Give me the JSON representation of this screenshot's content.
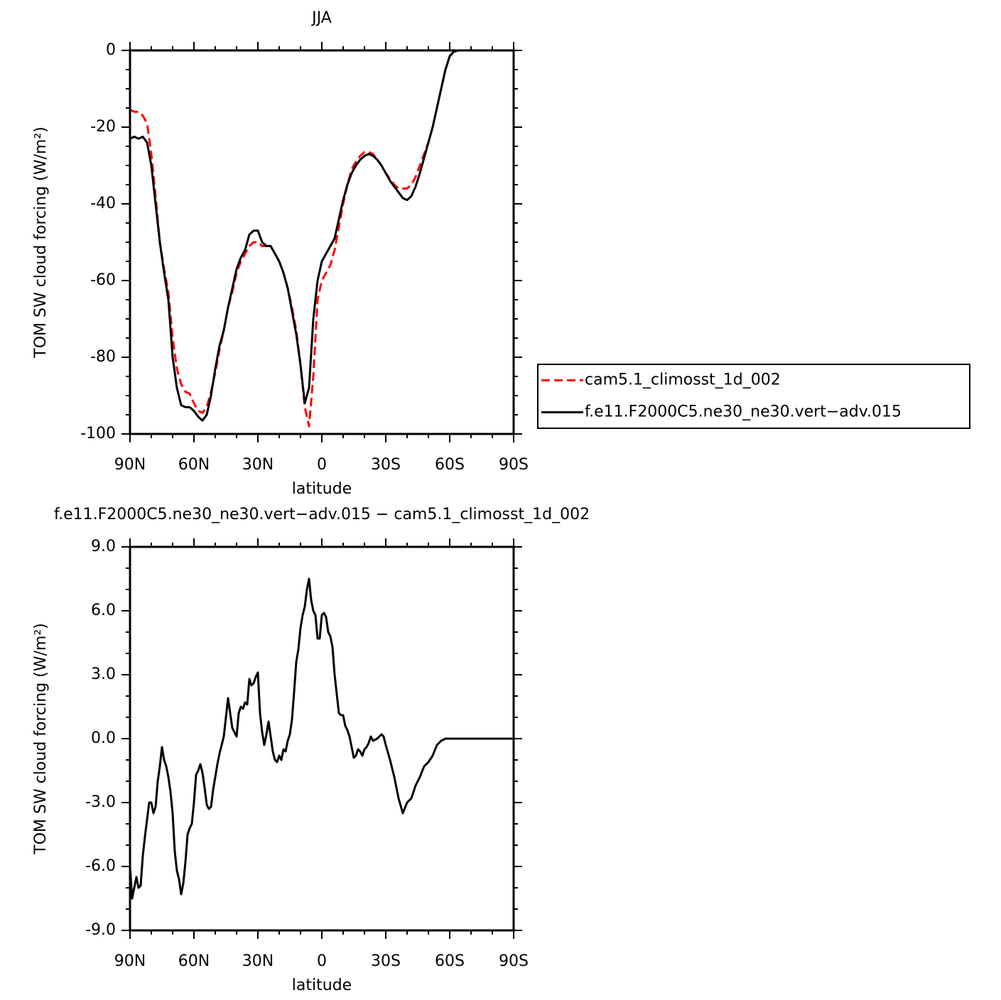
{
  "chart_data": [
    {
      "type": "line",
      "title": "JJA",
      "xlabel": "latitude",
      "ylabel": "TOM SW cloud forcing (W/m²)",
      "x": [
        90,
        88,
        86,
        84,
        82,
        80,
        78,
        76,
        74,
        72,
        70,
        68,
        66,
        64,
        62,
        60,
        58,
        56,
        54,
        52,
        50,
        48,
        46,
        44,
        42,
        40,
        38,
        36,
        34,
        32,
        30,
        28,
        26,
        24,
        22,
        20,
        18,
        16,
        14,
        12,
        10,
        8,
        6,
        4,
        2,
        0,
        -2,
        -4,
        -6,
        -8,
        -10,
        -12,
        -14,
        -16,
        -18,
        -20,
        -22,
        -24,
        -26,
        -28,
        -30,
        -32,
        -34,
        -36,
        -38,
        -40,
        -42,
        -44,
        -46,
        -48,
        -50,
        -52,
        -54,
        -56,
        -58,
        -60,
        -62,
        -64,
        -70,
        -80,
        -90
      ],
      "series": [
        {
          "name": "cam5.1_climosst_1d_002",
          "color": "#ff0000",
          "dash": "dashed",
          "values": [
            -15.5,
            -16,
            -16,
            -17,
            -19,
            -27,
            -38,
            -50,
            -57,
            -63,
            -75,
            -83,
            -87,
            -89,
            -89.5,
            -92,
            -94,
            -94.5,
            -93,
            -89,
            -84,
            -78,
            -73,
            -67,
            -63,
            -58,
            -55,
            -53,
            -51,
            -50,
            -50,
            -51,
            -51,
            -51,
            -53,
            -55,
            -58,
            -62,
            -67,
            -73,
            -82,
            -93,
            -98,
            -85,
            -65,
            -60,
            -58,
            -56,
            -52,
            -46,
            -40,
            -35,
            -31,
            -29,
            -27.5,
            -26.5,
            -26.5,
            -27,
            -28.5,
            -30,
            -32,
            -33.5,
            -35,
            -36,
            -36,
            -36,
            -35,
            -33,
            -30,
            -27,
            -24,
            -20,
            -15,
            -10,
            -5,
            -1.5,
            -0.3,
            0,
            0,
            0,
            0
          ]
        },
        {
          "name": "f.e11.F2000C5.ne30_ne30.vert−adv.015",
          "color": "#000000",
          "values": [
            -23,
            -22.5,
            -23,
            -22.5,
            -24,
            -30,
            -40,
            -50,
            -58,
            -65,
            -80,
            -88,
            -92.5,
            -93,
            -93,
            -94,
            -95.5,
            -96.5,
            -95,
            -90,
            -83,
            -77,
            -73,
            -67,
            -62,
            -57,
            -54,
            -52,
            -48,
            -47,
            -47,
            -50,
            -51,
            -51,
            -53,
            -55,
            -58,
            -62,
            -68,
            -74,
            -82,
            -92,
            -88,
            -70,
            -60,
            -55,
            -53,
            -51,
            -49,
            -44,
            -39,
            -35,
            -32,
            -30,
            -28.5,
            -27.5,
            -27,
            -27.5,
            -28.5,
            -30,
            -32,
            -34,
            -35.5,
            -37,
            -38.5,
            -39,
            -38,
            -35.5,
            -32,
            -28,
            -24,
            -20,
            -15,
            -10,
            -5,
            -1.5,
            -0.3,
            0,
            0,
            0,
            0
          ]
        }
      ],
      "xlim": [
        90,
        -90
      ],
      "xticks": [
        {
          "value": 90,
          "label": "90N"
        },
        {
          "value": 60,
          "label": "60N"
        },
        {
          "value": 30,
          "label": "30N"
        },
        0,
        {
          "value": -30,
          "label": "30S"
        },
        {
          "value": -60,
          "label": "60S"
        },
        {
          "value": -90,
          "label": "90S"
        }
      ],
      "ylim": [
        -100,
        0
      ],
      "yticks": [
        -100,
        -80,
        -60,
        -40,
        -20,
        0
      ],
      "legend": "right"
    },
    {
      "type": "line",
      "title": "f.e11.F2000C5.ne30_ne30.vert−adv.015 − cam5.1_climosst_1d_002",
      "xlabel": "latitude",
      "ylabel": "TOM SW cloud forcing (W/m²)",
      "x": [
        90,
        89,
        88,
        87,
        86,
        85,
        84,
        83,
        82,
        81,
        80,
        79,
        78,
        77,
        76,
        75,
        74,
        73,
        72,
        71,
        70,
        69,
        68,
        67,
        66,
        65,
        64,
        63,
        62,
        61,
        60,
        59,
        58,
        57,
        56,
        55,
        54,
        53,
        52,
        51,
        50,
        49,
        48,
        47,
        46,
        45,
        44,
        43,
        42,
        41,
        40,
        39,
        38,
        37,
        36,
        35,
        34,
        33,
        32,
        31,
        30,
        29,
        28,
        27,
        26,
        25,
        24,
        23,
        22,
        21,
        20,
        19,
        18,
        17,
        16,
        15,
        14,
        13,
        12,
        11,
        10,
        9,
        8,
        7,
        6,
        5,
        4,
        3,
        2,
        1,
        0,
        -1,
        -2,
        -3,
        -4,
        -5,
        -6,
        -7,
        -8,
        -9,
        -10,
        -11,
        -12,
        -13,
        -14,
        -15,
        -16,
        -17,
        -18,
        -19,
        -20,
        -21,
        -22,
        -23,
        -24,
        -26,
        -28,
        -29,
        -30,
        -32,
        -34,
        -36,
        -38,
        -40,
        -42,
        -44,
        -46,
        -48,
        -50,
        -52,
        -54,
        -56,
        -58,
        -62,
        -70,
        -80,
        -90
      ],
      "series": [
        {
          "color": "#000000",
          "values": [
            -6,
            -7.5,
            -7,
            -6.5,
            -7,
            -6.9,
            -5.5,
            -4.6,
            -3.8,
            -3.0,
            -3.0,
            -3.5,
            -3.2,
            -2.0,
            -1.3,
            -0.4,
            -1.0,
            -1.3,
            -1.8,
            -2.5,
            -3.5,
            -5.3,
            -6.2,
            -6.6,
            -7.3,
            -6.8,
            -5.8,
            -4.5,
            -4.2,
            -4.0,
            -3.0,
            -1.7,
            -1.5,
            -1.2,
            -1.6,
            -2.3,
            -3.1,
            -3.3,
            -3.2,
            -2.4,
            -1.8,
            -1.2,
            -0.7,
            -0.3,
            0.1,
            1.0,
            1.9,
            1.2,
            0.5,
            0.3,
            0.1,
            1.2,
            1.5,
            1.4,
            1.7,
            1.6,
            2.8,
            2.5,
            2.6,
            2.9,
            3.1,
            1.2,
            0.3,
            -0.3,
            0.2,
            0.8,
            0.1,
            -0.6,
            -1.0,
            -1.1,
            -0.8,
            -1.0,
            -0.5,
            -0.6,
            -0.1,
            0.2,
            0.9,
            2.2,
            3.6,
            4.2,
            5.2,
            5.8,
            6.2,
            7.0,
            7.5,
            6.5,
            6.0,
            5.8,
            4.7,
            4.7,
            5.8,
            5.9,
            5.7,
            5.0,
            4.8,
            4.3,
            3.0,
            2.1,
            1.2,
            1.1,
            1.1,
            0.6,
            0.4,
            0.1,
            -0.4,
            -0.9,
            -0.8,
            -0.5,
            -0.6,
            -0.8,
            -0.5,
            -0.4,
            -0.2,
            0.1,
            -0.1,
            0.0,
            0.2,
            0.1,
            -0.3,
            -1.0,
            -1.8,
            -2.8,
            -3.5,
            -3.0,
            -2.8,
            -2.2,
            -1.8,
            -1.3,
            -1.1,
            -0.8,
            -0.3,
            -0.1,
            0.0,
            0.0,
            0,
            0,
            0
          ]
        }
      ],
      "xlim": [
        90,
        -90
      ],
      "xticks": [
        {
          "value": 90,
          "label": "90N"
        },
        {
          "value": 60,
          "label": "60N"
        },
        {
          "value": 30,
          "label": "30N"
        },
        0,
        {
          "value": -30,
          "label": "30S"
        },
        {
          "value": -60,
          "label": "60S"
        },
        {
          "value": -90,
          "label": "90S"
        }
      ],
      "ylim": [
        -9,
        9
      ],
      "yticks": [
        {
          "value": -9,
          "label": "-9.0"
        },
        {
          "value": -6,
          "label": "-6.0"
        },
        {
          "value": -3,
          "label": "-3.0"
        },
        {
          "value": 0,
          "label": "0.0"
        },
        {
          "value": 3,
          "label": "3.0"
        },
        {
          "value": 6,
          "label": "6.0"
        },
        {
          "value": 9,
          "label": "9.0"
        }
      ]
    }
  ]
}
